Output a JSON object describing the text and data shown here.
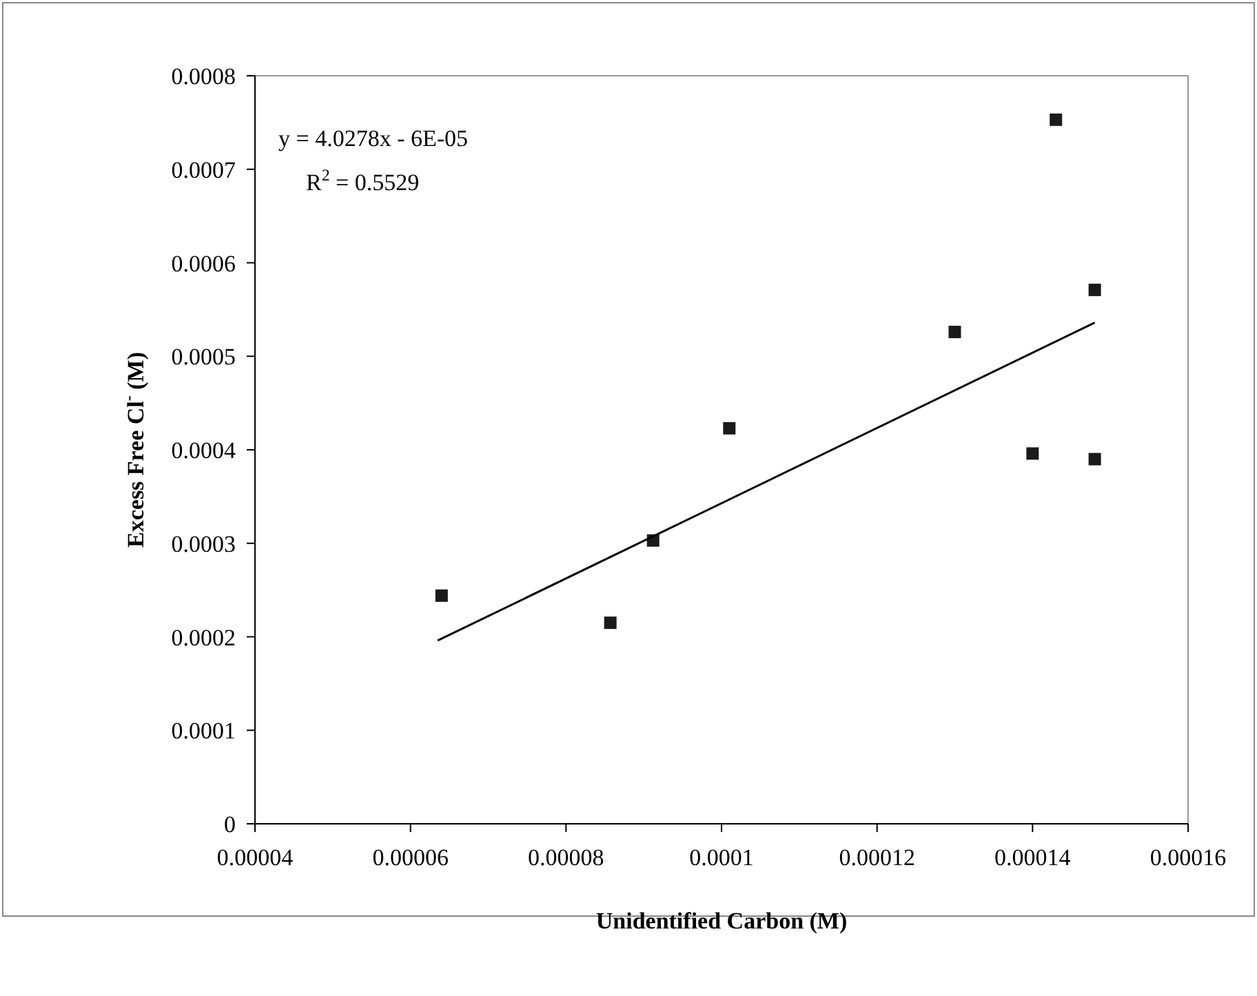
{
  "chart_data": {
    "type": "scatter",
    "xlabel": "Unidentified Carbon (M)",
    "ylabel": "Excess Free Cl$^{-}$ (M)",
    "xlim": [
      4e-05,
      0.00016
    ],
    "xticks": [
      {
        "value": 4e-05,
        "label": "0.00004"
      },
      {
        "value": 6e-05,
        "label": "0.00006"
      },
      {
        "value": 8e-05,
        "label": "0.00008"
      },
      0.0001,
      0.00012,
      0.00014,
      0.00016
    ],
    "ylim": [
      0,
      0.0008
    ],
    "yticks": [
      0,
      0.0001,
      0.0002,
      0.0003,
      0.0004,
      0.0005,
      0.0006,
      0.0007,
      0.0008
    ],
    "annotations": [
      "y = 4.0278x - 6E-05",
      "R$^{2}$ = 0.5529"
    ],
    "series": [
      {
        "color": "#1a1a1a",
        "marker": "square",
        "x": [
          6.4e-05,
          8.57e-05,
          9.12e-05,
          0.000101,
          0.00013,
          0.00014,
          0.000148,
          0.000143,
          0.000148
        ],
        "values": [
          0.000244,
          0.000215,
          0.000303,
          0.000423,
          0.000526,
          0.000396,
          0.00039,
          0.000753,
          0.000571
        ]
      },
      {
        "type": "line",
        "color": "#000000",
        "x": [
          6.35e-05,
          0.000148
        ],
        "values": [
          0.000196,
          0.000536
        ]
      }
    ]
  }
}
